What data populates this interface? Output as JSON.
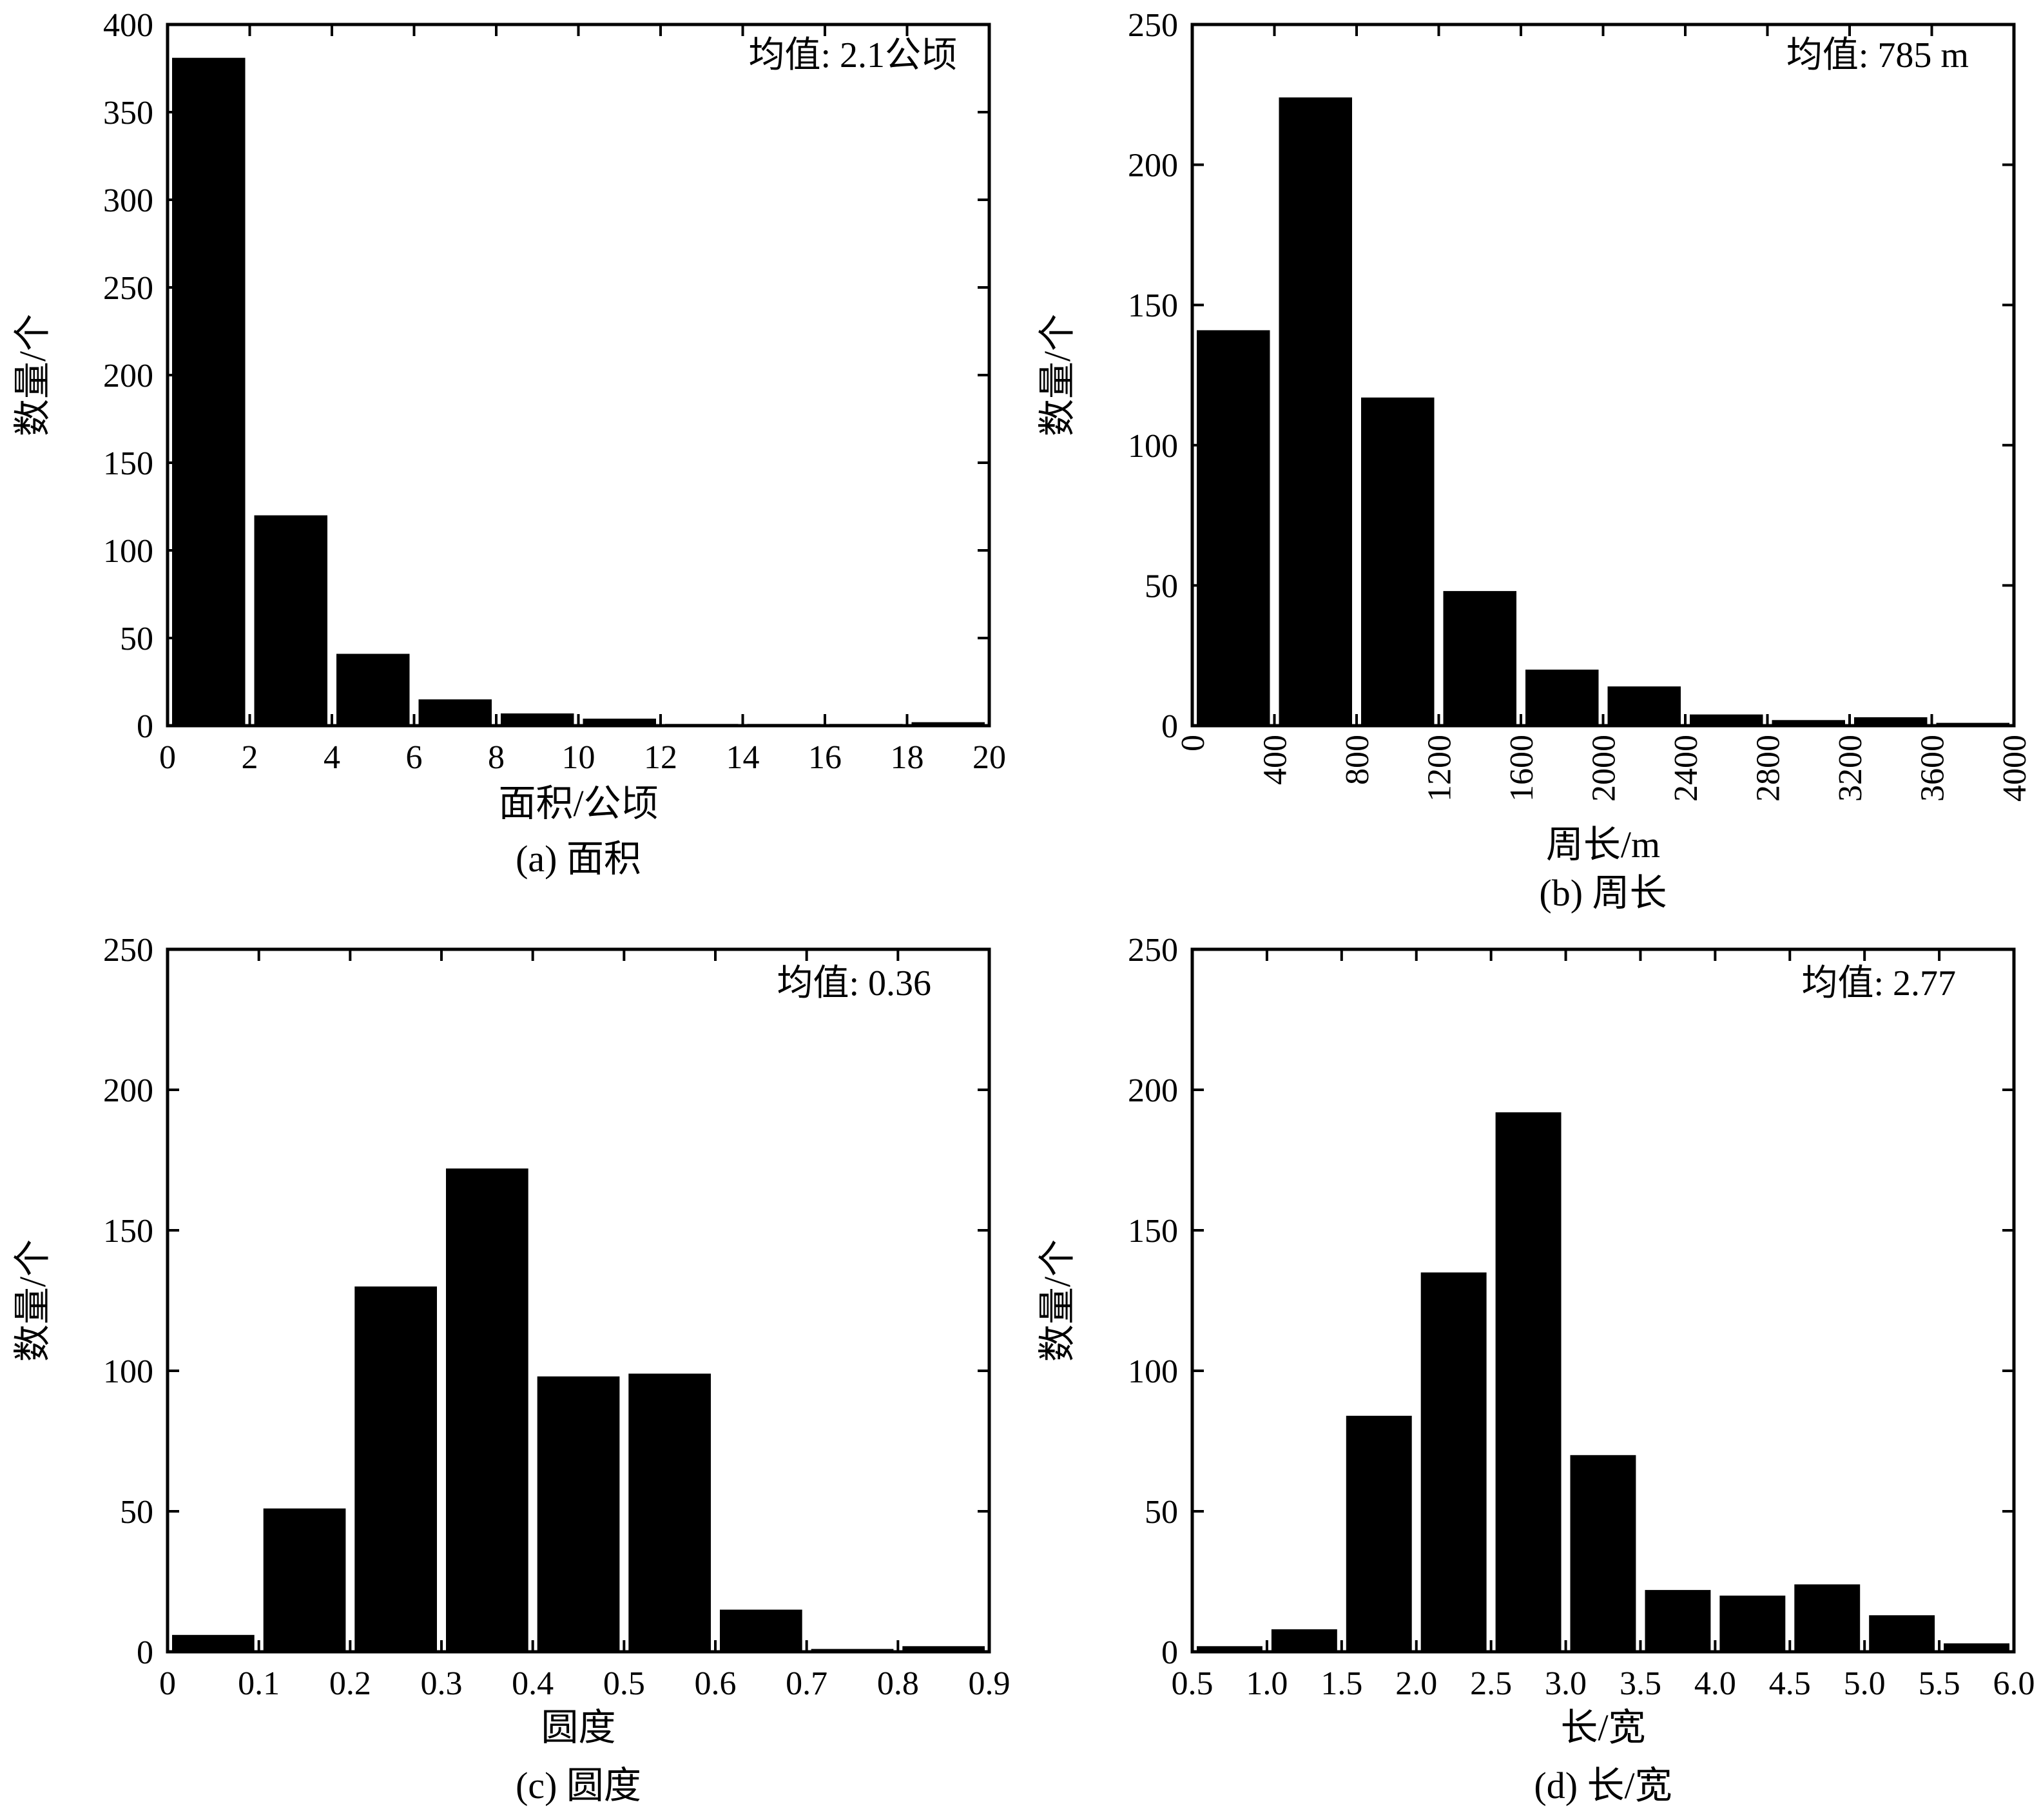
{
  "chart_data": [
    {
      "type": "bar",
      "caption": "(a) 面积",
      "xlabel": "面积/公顷",
      "ylabel": "数量/个",
      "annotation": "均值: 2.1公顷",
      "xlim": [
        0,
        20
      ],
      "ylim": [
        0,
        400
      ],
      "xticks": [
        0,
        2,
        4,
        6,
        8,
        10,
        12,
        14,
        16,
        18,
        20
      ],
      "xtick_labels": [
        "0",
        "2",
        "4",
        "6",
        "8",
        "10",
        "12",
        "14",
        "16",
        "18",
        "20"
      ],
      "yticks": [
        0,
        50,
        100,
        150,
        200,
        250,
        300,
        350,
        400
      ],
      "ytick_labels": [
        "0",
        "50",
        "100",
        "150",
        "200",
        "250",
        "300",
        "350",
        "400"
      ],
      "xtick_rotation": 0,
      "bin_edges": [
        0,
        2,
        4,
        6,
        8,
        10,
        12,
        14,
        16,
        18,
        20
      ],
      "values": [
        381,
        120,
        41,
        15,
        7,
        4,
        1,
        1,
        1,
        2
      ],
      "grid": false,
      "legend": "none"
    },
    {
      "type": "bar",
      "caption": "(b) 周长",
      "xlabel": "周长/m",
      "ylabel": "数量/个",
      "annotation": "均值: 785 m",
      "xlim": [
        0,
        4000
      ],
      "ylim": [
        0,
        250
      ],
      "xticks": [
        0,
        400,
        800,
        1200,
        1600,
        2000,
        2400,
        2800,
        3200,
        3600,
        4000
      ],
      "xtick_labels": [
        "0",
        "400",
        "800",
        "1200",
        "1600",
        "2000",
        "2400",
        "2800",
        "3200",
        "3600",
        "4000"
      ],
      "yticks": [
        0,
        50,
        100,
        150,
        200,
        250
      ],
      "ytick_labels": [
        "0",
        "50",
        "100",
        "150",
        "200",
        "250"
      ],
      "xtick_rotation": -90,
      "bin_edges": [
        0,
        400,
        800,
        1200,
        1600,
        2000,
        2400,
        2800,
        3200,
        3600,
        4000
      ],
      "values": [
        141,
        224,
        117,
        48,
        20,
        14,
        4,
        2,
        3,
        1
      ],
      "grid": false,
      "legend": "none"
    },
    {
      "type": "bar",
      "caption": "(c) 圆度",
      "xlabel": "圆度",
      "ylabel": "数量/个",
      "annotation": "均值: 0.36",
      "xlim": [
        0,
        0.9
      ],
      "ylim": [
        0,
        250
      ],
      "xticks": [
        0,
        0.1,
        0.2,
        0.3,
        0.4,
        0.5,
        0.6,
        0.7,
        0.8,
        0.9
      ],
      "xtick_labels": [
        "0",
        "0.1",
        "0.2",
        "0.3",
        "0.4",
        "0.5",
        "0.6",
        "0.7",
        "0.8",
        "0.9"
      ],
      "yticks": [
        0,
        50,
        100,
        150,
        200,
        250
      ],
      "ytick_labels": [
        "0",
        "50",
        "100",
        "150",
        "200",
        "250"
      ],
      "xtick_rotation": 0,
      "bin_edges": [
        0,
        0.1,
        0.2,
        0.3,
        0.4,
        0.5,
        0.6,
        0.7,
        0.8,
        0.9
      ],
      "values": [
        6,
        51,
        130,
        172,
        98,
        99,
        15,
        1,
        2
      ],
      "grid": false,
      "legend": "none"
    },
    {
      "type": "bar",
      "caption": "(d) 长/宽",
      "xlabel": "长/宽",
      "ylabel": "数量/个",
      "annotation": "均值: 2.77",
      "xlim": [
        0.5,
        6.0
      ],
      "ylim": [
        0,
        250
      ],
      "xticks": [
        0.5,
        1.0,
        1.5,
        2.0,
        2.5,
        3.0,
        3.5,
        4.0,
        4.5,
        5.0,
        5.5,
        6.0
      ],
      "xtick_labels": [
        "0.5",
        "1.0",
        "1.5",
        "2.0",
        "2.5",
        "3.0",
        "3.5",
        "4.0",
        "4.5",
        "5.0",
        "5.5",
        "6.0"
      ],
      "yticks": [
        0,
        50,
        100,
        150,
        200,
        250
      ],
      "ytick_labels": [
        "0",
        "50",
        "100",
        "150",
        "200",
        "250"
      ],
      "xtick_rotation": 0,
      "bin_edges": [
        0.5,
        1.0,
        1.5,
        2.0,
        2.5,
        3.0,
        3.5,
        4.0,
        4.5,
        5.0,
        5.5,
        6.0
      ],
      "values": [
        2,
        8,
        84,
        135,
        192,
        70,
        22,
        20,
        24,
        13,
        3
      ],
      "grid": false,
      "legend": "none"
    }
  ]
}
